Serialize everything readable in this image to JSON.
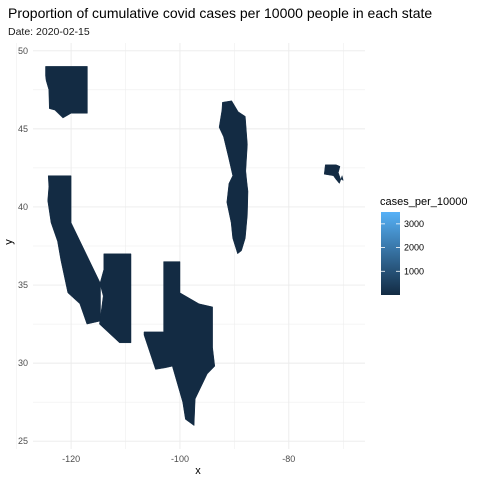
{
  "chart_data": {
    "type": "map",
    "title": "Proportion of cumulative covid cases per 10000 people in each state",
    "subtitle": "Date: 2020-02-15",
    "xlabel": "x",
    "ylabel": "y",
    "xlim": [
      -127,
      -66
    ],
    "ylim": [
      24.5,
      50.5
    ],
    "x_ticks": [
      -120,
      -100,
      -80
    ],
    "y_ticks": [
      25,
      30,
      35,
      40,
      45,
      50
    ],
    "grid": true,
    "legend": {
      "title": "cases_per_10000",
      "position": "right",
      "breaks": [
        1000,
        2000,
        3000
      ],
      "range": [
        0,
        3500
      ],
      "low_color": "#132b43",
      "high_color": "#56b1f7"
    },
    "fill_color": "#132b43",
    "regions": [
      {
        "id": "wa",
        "points": [
          [
            -124.7,
            49.0
          ],
          [
            -117.0,
            49.0
          ],
          [
            -117.0,
            46.0
          ],
          [
            -120.0,
            46.0
          ],
          [
            -121.5,
            45.7
          ],
          [
            -123.0,
            46.2
          ],
          [
            -124.0,
            46.3
          ],
          [
            -124.1,
            47.5
          ],
          [
            -124.6,
            48.1
          ],
          [
            -124.7,
            48.4
          ]
        ]
      },
      {
        "id": "ca-nv",
        "points": [
          [
            -124.2,
            42.0
          ],
          [
            -120.0,
            42.0
          ],
          [
            -120.0,
            39.0
          ],
          [
            -114.6,
            35.1
          ],
          [
            -114.6,
            32.7
          ],
          [
            -117.1,
            32.5
          ],
          [
            -118.4,
            33.8
          ],
          [
            -120.6,
            34.5
          ],
          [
            -121.9,
            36.6
          ],
          [
            -122.5,
            37.8
          ],
          [
            -123.7,
            39.0
          ],
          [
            -124.3,
            40.4
          ],
          [
            -124.1,
            41.3
          ]
        ]
      },
      {
        "id": "az",
        "points": [
          [
            -114.0,
            37.0
          ],
          [
            -109.0,
            37.0
          ],
          [
            -109.0,
            31.3
          ],
          [
            -111.1,
            31.3
          ],
          [
            -114.8,
            32.5
          ],
          [
            -114.6,
            33.0
          ],
          [
            -114.1,
            34.3
          ],
          [
            -114.7,
            35.1
          ],
          [
            -114.0,
            36.0
          ]
        ]
      },
      {
        "id": "tx",
        "points": [
          [
            -103.0,
            36.5
          ],
          [
            -100.0,
            36.5
          ],
          [
            -100.0,
            34.5
          ],
          [
            -96.5,
            33.8
          ],
          [
            -94.0,
            33.6
          ],
          [
            -94.0,
            31.0
          ],
          [
            -93.6,
            29.8
          ],
          [
            -95.0,
            29.3
          ],
          [
            -97.2,
            27.7
          ],
          [
            -97.4,
            26.0
          ],
          [
            -99.0,
            26.4
          ],
          [
            -99.5,
            27.5
          ],
          [
            -101.4,
            29.8
          ],
          [
            -102.7,
            29.7
          ],
          [
            -104.5,
            29.6
          ],
          [
            -106.6,
            31.8
          ],
          [
            -106.6,
            32.0
          ],
          [
            -103.0,
            32.0
          ]
        ]
      },
      {
        "id": "wi-il",
        "points": [
          [
            -92.2,
            46.7
          ],
          [
            -90.5,
            46.8
          ],
          [
            -89.3,
            46.1
          ],
          [
            -88.0,
            45.8
          ],
          [
            -87.6,
            44.0
          ],
          [
            -87.9,
            42.3
          ],
          [
            -87.7,
            41.6
          ],
          [
            -87.5,
            41.0
          ],
          [
            -87.6,
            39.5
          ],
          [
            -88.0,
            38.0
          ],
          [
            -88.7,
            37.2
          ],
          [
            -89.4,
            37.0
          ],
          [
            -90.3,
            38.0
          ],
          [
            -90.6,
            39.0
          ],
          [
            -91.4,
            40.3
          ],
          [
            -91.0,
            41.5
          ],
          [
            -90.3,
            42.0
          ],
          [
            -91.1,
            43.2
          ],
          [
            -92.0,
            44.5
          ],
          [
            -92.8,
            45.1
          ],
          [
            -92.3,
            46.2
          ]
        ]
      },
      {
        "id": "ma",
        "points": [
          [
            -73.5,
            42.1
          ],
          [
            -73.3,
            42.7
          ],
          [
            -71.3,
            42.7
          ],
          [
            -70.6,
            42.6
          ],
          [
            -70.9,
            42.2
          ],
          [
            -70.5,
            41.8
          ],
          [
            -70.0,
            41.7
          ],
          [
            -70.2,
            42.0
          ],
          [
            -70.7,
            41.5
          ],
          [
            -71.4,
            41.8
          ],
          [
            -71.8,
            42.0
          ]
        ]
      }
    ]
  }
}
